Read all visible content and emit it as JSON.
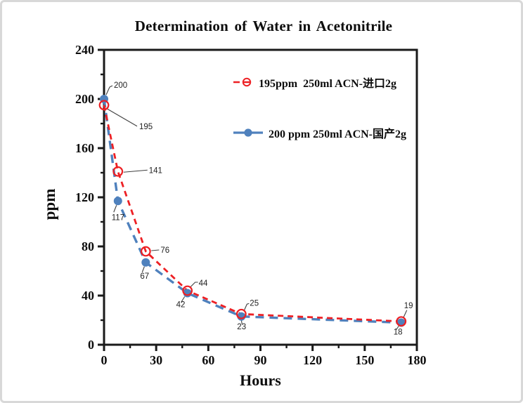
{
  "chart_data": {
    "type": "line",
    "title": "Determination of Water in Acetonitrile",
    "xlabel": "Hours",
    "ylabel": "ppm",
    "xlim": [
      0,
      180
    ],
    "ylim": [
      0,
      240
    ],
    "x_major_ticks": [
      0,
      30,
      60,
      90,
      120,
      150,
      180
    ],
    "x_minor_step": 15,
    "y_major_ticks": [
      0,
      40,
      80,
      120,
      160,
      200,
      240
    ],
    "y_minor_step": 20,
    "grid": false,
    "legend_position": "top-inside",
    "data_labels": true,
    "axis_color": "#1a1a1a",
    "data_label_color": "#1f1f1f",
    "series": [
      {
        "name": "195ppm  250ml ACN-进口2g",
        "color": "#ed2024",
        "line_style": "dashed",
        "marker": "open-circle",
        "x": [
          0,
          8,
          24,
          48,
          79,
          171
        ],
        "values": [
          195,
          141,
          76,
          44,
          25,
          19
        ]
      },
      {
        "name": "200 ppm 250ml ACN-国产2g",
        "color": "#4f81bd",
        "line_style": "dashed",
        "marker": "filled-circle",
        "x": [
          0,
          8,
          24,
          48,
          79,
          171
        ],
        "values": [
          200,
          117,
          67,
          42,
          23,
          18
        ]
      }
    ]
  }
}
